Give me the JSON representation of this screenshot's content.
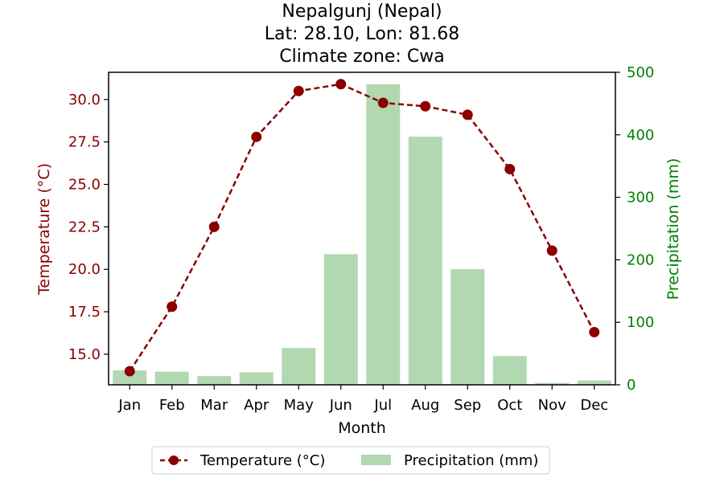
{
  "chart_data": {
    "type": "bar+line",
    "title_lines": [
      "Nepalgunj (Nepal)",
      "Lat: 28.10, Lon: 81.68",
      "Climate zone: Cwa"
    ],
    "xlabel": "Month",
    "categories": [
      "Jan",
      "Feb",
      "Mar",
      "Apr",
      "May",
      "Jun",
      "Jul",
      "Aug",
      "Sep",
      "Oct",
      "Nov",
      "Dec"
    ],
    "series": [
      {
        "name": "Temperature (°C)",
        "type": "line",
        "axis": "left",
        "color": "#8b0000",
        "values": [
          14.0,
          17.8,
          22.5,
          27.8,
          30.5,
          30.9,
          29.8,
          29.6,
          29.1,
          25.9,
          21.1,
          16.3
        ]
      },
      {
        "name": "Precipitation (mm)",
        "type": "bar",
        "axis": "right",
        "color": "#b2d8b2",
        "values": [
          23,
          21,
          14,
          20,
          59,
          209,
          481,
          397,
          185,
          46,
          3,
          7
        ]
      }
    ],
    "left_axis": {
      "label": "Temperature (°C)",
      "color": "#8b0000",
      "ylim": [
        13.2,
        31.6
      ],
      "ticks": [
        15.0,
        17.5,
        20.0,
        22.5,
        25.0,
        27.5,
        30.0
      ],
      "tick_labels": [
        "15.0",
        "17.5",
        "20.0",
        "22.5",
        "25.0",
        "27.5",
        "30.0"
      ]
    },
    "right_axis": {
      "label": "Precipitation (mm)",
      "color": "#008000",
      "ylim": [
        0,
        500
      ],
      "ticks": [
        0,
        100,
        200,
        300,
        400,
        500
      ],
      "tick_labels": [
        "0",
        "100",
        "200",
        "300",
        "400",
        "500"
      ]
    },
    "legend": {
      "position": "bottom-center",
      "entries": [
        "Temperature (°C)",
        "Precipitation (mm)"
      ]
    },
    "grid": false
  }
}
